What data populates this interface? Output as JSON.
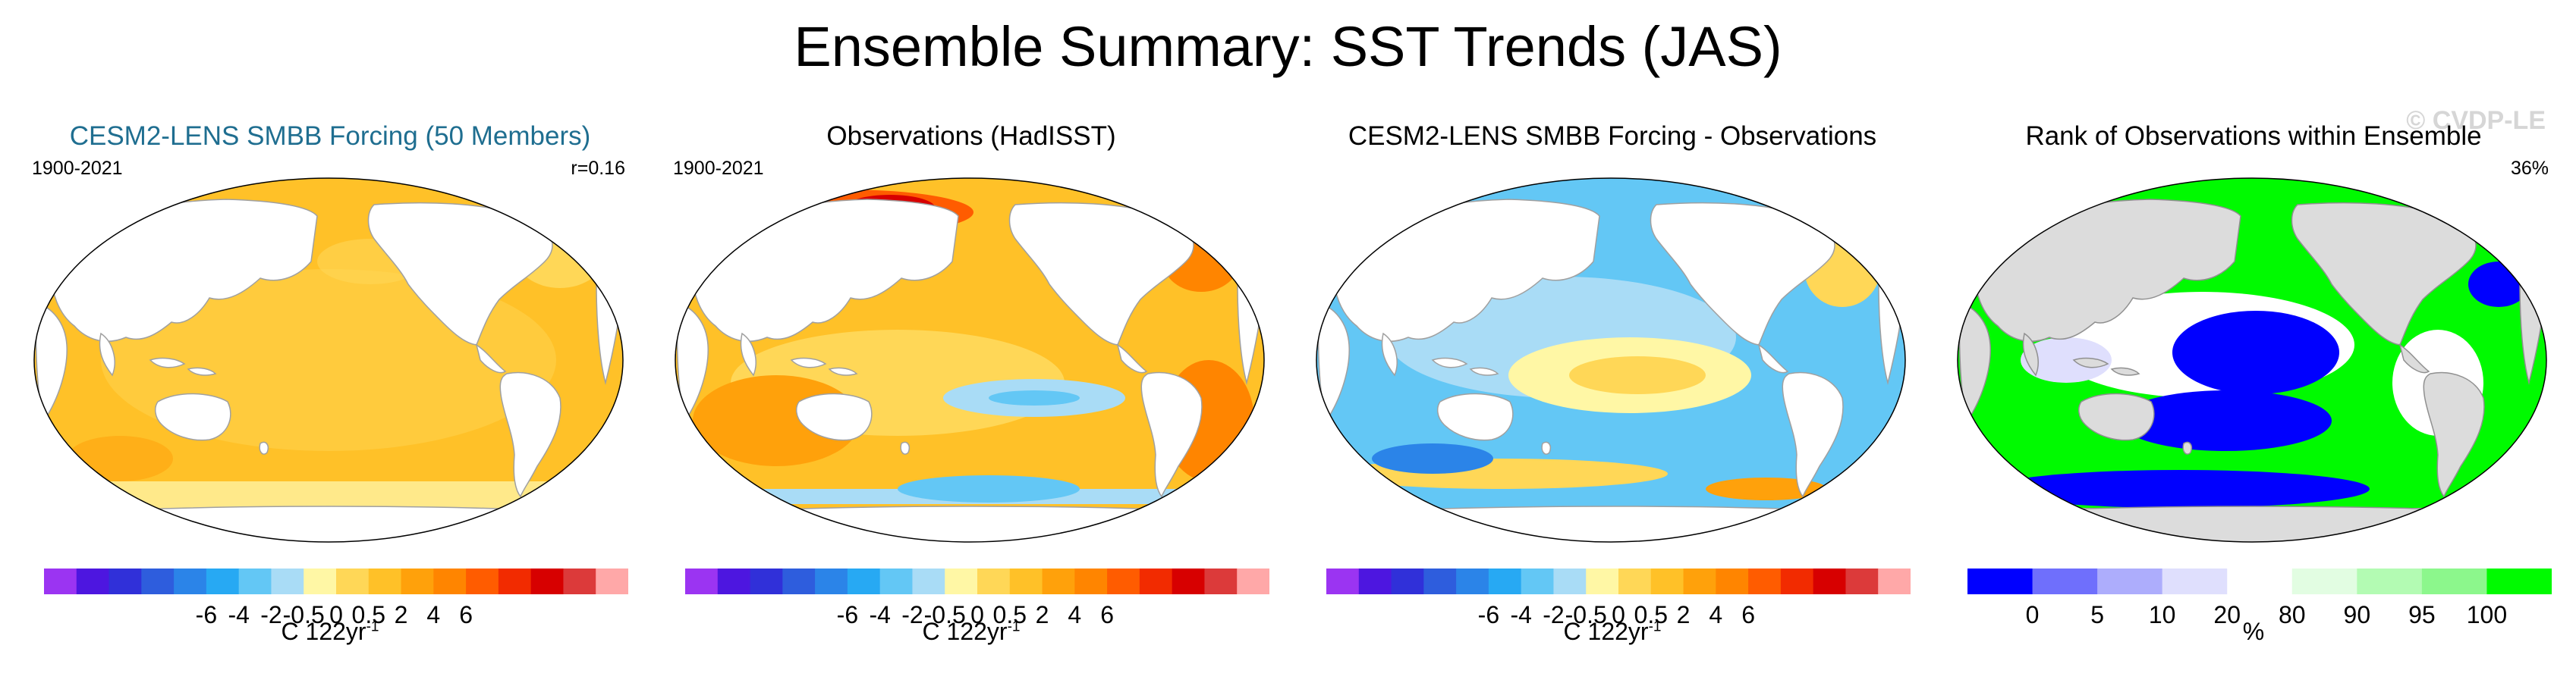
{
  "title": "Ensemble Summary: SST Trends (JAS)",
  "watermark": "© CVDP-LE",
  "colors": {
    "title_blue": "#1f6e90",
    "land": "#ffffff",
    "coast": "#a0a0a0",
    "rank_land": "#dcdcdc"
  },
  "panels": [
    {
      "title": "CESM2-LENS SMBB Forcing (50 Members)",
      "period": "1900-2021",
      "stat": "r=0.16",
      "colorbar": {
        "colors": [
          "#9b34f2",
          "#4d16e0",
          "#3030d9",
          "#2e5ddd",
          "#2b84e8",
          "#27a9f3",
          "#63c7f5",
          "#a9dcf6",
          "#fff7a5",
          "#ffd757",
          "#ffc128",
          "#ffa10b",
          "#ff8500",
          "#ff5c00",
          "#f22b00",
          "#d70000",
          "#dc3a3a",
          "#ffa8a8"
        ],
        "ticks": [
          "-6",
          "-4",
          "-2",
          "-0.5",
          "0",
          "0.5",
          "2",
          "4",
          "6"
        ],
        "label_main": "C 122yr",
        "label_sup": "-1"
      }
    },
    {
      "title": "Observations (HadISST)",
      "period": "1900-2021",
      "stat": "",
      "colorbar": {
        "colors": [
          "#9b34f2",
          "#4d16e0",
          "#3030d9",
          "#2e5ddd",
          "#2b84e8",
          "#27a9f3",
          "#63c7f5",
          "#a9dcf6",
          "#fff7a5",
          "#ffd757",
          "#ffc128",
          "#ffa10b",
          "#ff8500",
          "#ff5c00",
          "#f22b00",
          "#d70000",
          "#dc3a3a",
          "#ffa8a8"
        ],
        "ticks": [
          "-6",
          "-4",
          "-2",
          "-0.5",
          "0",
          "0.5",
          "2",
          "4",
          "6"
        ],
        "label_main": "C 122yr",
        "label_sup": "-1"
      }
    },
    {
      "title": "CESM2-LENS SMBB Forcing - Observations",
      "period": "",
      "stat": "",
      "colorbar": {
        "colors": [
          "#9b34f2",
          "#4d16e0",
          "#3030d9",
          "#2e5ddd",
          "#2b84e8",
          "#27a9f3",
          "#63c7f5",
          "#a9dcf6",
          "#fff7a5",
          "#ffd757",
          "#ffc128",
          "#ffa10b",
          "#ff8500",
          "#ff5c00",
          "#f22b00",
          "#d70000",
          "#dc3a3a",
          "#ffa8a8"
        ],
        "ticks": [
          "-6",
          "-4",
          "-2",
          "-0.5",
          "0",
          "0.5",
          "2",
          "4",
          "6"
        ],
        "label_main": "C 122yr",
        "label_sup": "-1"
      }
    },
    {
      "title": "Rank of Observations within Ensemble",
      "period": "",
      "stat": "36%",
      "colorbar": {
        "colors": [
          "#0000ff",
          "#6f6ffc",
          "#adadfc",
          "#dfdffd",
          "#ffffff",
          "#e2fde2",
          "#b3fbb3",
          "#8cf78c",
          "#00fa00"
        ],
        "ticks": [
          "0",
          "5",
          "10",
          "20",
          "80",
          "90",
          "95",
          "100"
        ],
        "label_main": "%",
        "label_sup": ""
      }
    }
  ],
  "chart_data": [
    {
      "type": "heatmap",
      "title": "CESM2-LENS SMBB Forcing (50 Members)",
      "period": "1900-2021",
      "pattern_correlation": 0.16,
      "variable": "SST trend (JAS)",
      "units": "C 122yr-1",
      "color_levels": [
        -6,
        -5,
        -4,
        -3,
        -2,
        -1,
        -0.5,
        -0.2,
        0,
        0.2,
        0.5,
        1,
        2,
        3,
        4,
        5,
        6
      ],
      "description_of_field": "uniform warming ~0.5-2 C over most oceans; near 0-0.5 in subpolar North Atlantic and Southern Ocean"
    },
    {
      "type": "heatmap",
      "title": "Observations (HadISST)",
      "period": "1900-2021",
      "variable": "SST trend (JAS)",
      "units": "C 122yr-1",
      "color_levels": [
        -6,
        -5,
        -4,
        -3,
        -2,
        -1,
        -0.5,
        -0.2,
        0,
        0.2,
        0.5,
        1,
        2,
        3,
        4,
        5,
        6
      ],
      "description_of_field": "warming 0.5-2 C broadly; strong Arctic warming 3-6 C; cooling patches in central Pacific and Southern Ocean"
    },
    {
      "type": "heatmap",
      "title": "CESM2-LENS SMBB Forcing - Observations",
      "variable": "SST trend difference (JAS)",
      "units": "C 122yr-1",
      "color_levels": [
        -6,
        -5,
        -4,
        -3,
        -2,
        -1,
        -0.5,
        -0.2,
        0,
        0.2,
        0.5,
        1,
        2,
        3,
        4,
        5,
        6
      ],
      "description_of_field": "model cooler than observations over most oceans (-0.5 to -2); warmer in tropical Pacific and parts of Southern Ocean"
    },
    {
      "type": "heatmap",
      "title": "Rank of Observations within Ensemble",
      "variable": "percentile rank",
      "units": "%",
      "area_fraction_label": "36%",
      "color_levels": [
        0,
        5,
        10,
        20,
        80,
        90,
        95,
        100
      ],
      "description_of_field": "observations above 95th percentile (green) in many coastal/Atlantic regions; below 5th percentile (blue) in central Pacific and Southern Ocean"
    }
  ]
}
